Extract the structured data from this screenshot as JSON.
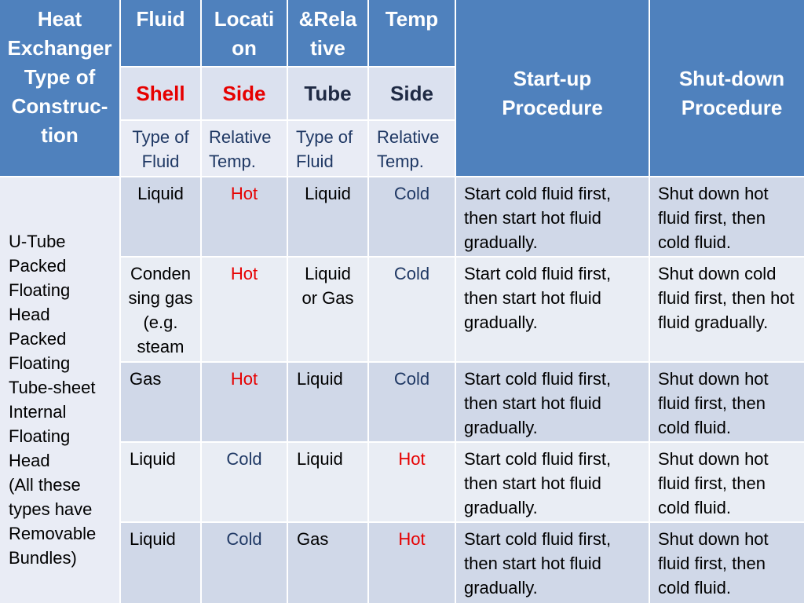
{
  "header": {
    "col1": "Heat Exchanger Type of Construc-tion",
    "fluid": "Fluid",
    "location": "Locati on",
    "relative": "&Rela tive",
    "temp": "Temp",
    "startup": "Start-up Procedure",
    "shutdown": "Shut-down Procedure",
    "shell": "Shell",
    "side1": "Side",
    "tube": "Tube",
    "side2": "Side",
    "sub1": "Type of Fluid",
    "sub2": "Relative Temp.",
    "sub3": "Type of Fluid",
    "sub4": "Relative Temp."
  },
  "types_lines": [
    "U-Tube",
    "Packed",
    "Floating",
    "Head",
    "Packed",
    "Floating",
    "Tube-sheet",
    "Internal",
    "Floating",
    "Head",
    "(All these",
    "types have",
    "Removable",
    "Bundles)"
  ],
  "rows": [
    {
      "shell_fluid": "Liquid",
      "shell_temp": "Hot",
      "tube_fluid": "Liquid",
      "tube_temp": "Cold",
      "startup": "Start cold fluid first, then start hot fluid gradually.",
      "shutdown": "Shut down hot fluid first, then cold fluid."
    },
    {
      "shell_fluid": "Conden sing gas (e.g. steam",
      "shell_temp": "Hot",
      "tube_fluid": "Liquid or Gas",
      "tube_temp": "Cold",
      "startup": "Start cold fluid first, then start  hot fluid gradually.",
      "shutdown": "Shut down cold fluid first, then hot fluid gradually."
    },
    {
      "shell_fluid": "Gas",
      "shell_temp": "Hot",
      "tube_fluid": "Liquid",
      "tube_temp": "Cold",
      "startup": "Start cold fluid first, then start hot fluid gradually.",
      "shutdown": "Shut down hot fluid first, then cold fluid."
    },
    {
      "shell_fluid": "Liquid",
      "shell_temp": "Cold",
      "tube_fluid": "Liquid",
      "tube_temp": "Hot",
      "startup": "Start cold fluid first, then start hot fluid gradually.",
      "shutdown": "Shut down hot fluid first, then cold fluid."
    },
    {
      "shell_fluid": "Liquid",
      "shell_temp": "Cold",
      "tube_fluid": "Gas",
      "tube_temp": "Hot",
      "startup": "Start cold fluid first, then start hot fluid gradually.",
      "shutdown": "Shut down hot fluid first, then cold fluid."
    }
  ],
  "colors": {
    "header": "#4f81bd",
    "band_dark": "#d0d8e8",
    "band_light": "#e9edf4",
    "hot": "#e60000",
    "cold": "#1f3864"
  }
}
